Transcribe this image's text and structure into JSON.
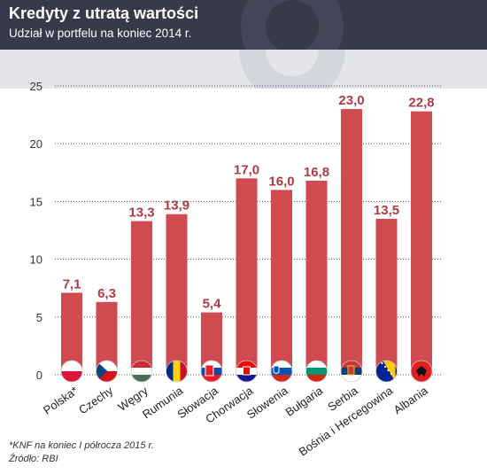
{
  "header": {
    "title": "Kredyty z utratą wartości",
    "subtitle": "Udział w portfelu na koniec 2014 r."
  },
  "footer": {
    "note": "*KNF na koniec I półrocza 2015 r.",
    "source": "Źródło: RBI"
  },
  "colors": {
    "bar": "#d04b50",
    "value_label": "#b03a45",
    "header_bg": "#383a4a",
    "grid": "#555555"
  },
  "chart_data": {
    "type": "bar",
    "title": "Kredyty z utratą wartości",
    "subtitle": "Udział w portfelu na koniec 2014 r.",
    "xlabel": "",
    "ylabel": "",
    "ylim": [
      0,
      25
    ],
    "yticks": [
      0,
      5,
      10,
      15,
      20,
      25
    ],
    "grid": true,
    "categories": [
      "Polska*",
      "Czechy",
      "Węgry",
      "Rumunia",
      "Słowacja",
      "Chorwacja",
      "Słowenia",
      "Bułgaria",
      "Serbia",
      "Bośnia i Hercegowina",
      "Albania"
    ],
    "values": [
      7.1,
      6.3,
      13.3,
      13.9,
      5.4,
      17.0,
      16.0,
      16.8,
      23.0,
      13.5,
      22.8
    ],
    "value_labels": [
      "7,1",
      "6,3",
      "13,3",
      "13,9",
      "5,4",
      "17,0",
      "16,0",
      "16,8",
      "23,0",
      "13,5",
      "22,8"
    ],
    "flags": [
      "poland-flag-icon",
      "czech-flag-icon",
      "hungary-flag-icon",
      "romania-flag-icon",
      "slovakia-flag-icon",
      "croatia-flag-icon",
      "slovenia-flag-icon",
      "bulgaria-flag-icon",
      "serbia-flag-icon",
      "bosnia-flag-icon",
      "albania-flag-icon"
    ]
  }
}
